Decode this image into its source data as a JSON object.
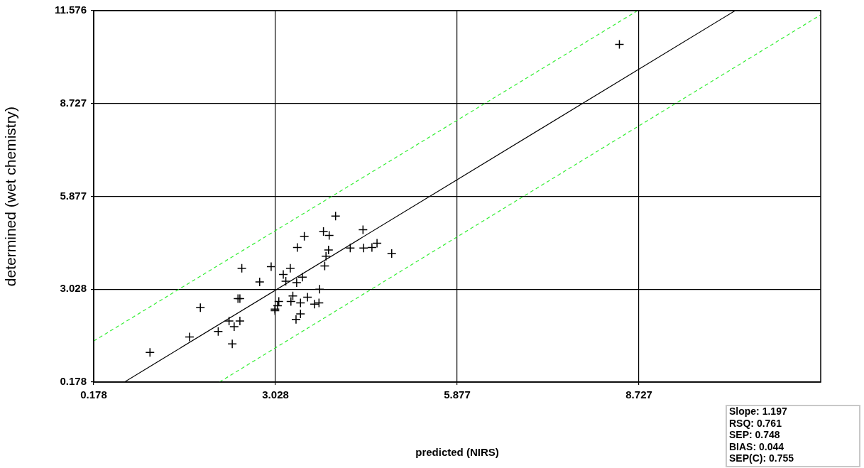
{
  "chart_data": {
    "type": "scatter",
    "xlabel": "predicted (NIRS)",
    "ylabel": "determined (wet chemistry)",
    "xlim": [
      0.178,
      11.576
    ],
    "ylim": [
      0.178,
      11.576
    ],
    "xticks": [
      0.178,
      3.028,
      5.877,
      8.727
    ],
    "yticks": [
      0.178,
      3.028,
      5.877,
      8.727,
      11.576
    ],
    "grid": true,
    "legend": false,
    "marker": "cross",
    "series": [
      {
        "color": "#000000",
        "x": [
          1.06,
          1.68,
          1.85,
          2.13,
          2.3,
          2.35,
          2.38,
          2.47,
          2.44,
          2.47,
          2.5,
          2.78,
          2.96,
          3.02,
          3.02,
          3.06,
          3.08,
          3.15,
          3.19,
          3.26,
          3.27,
          3.3,
          3.35,
          3.36,
          3.37,
          3.42,
          3.42,
          3.45,
          3.48,
          3.53,
          3.64,
          3.71,
          3.72,
          3.78,
          3.8,
          3.82,
          3.86,
          3.87,
          3.97,
          4.2,
          4.4,
          4.41,
          4.54,
          4.62,
          4.85,
          8.42
        ],
        "values": [
          1.09,
          1.56,
          2.46,
          1.73,
          2.05,
          1.35,
          1.88,
          2.05,
          2.74,
          2.74,
          3.67,
          3.25,
          3.72,
          2.42,
          2.37,
          2.52,
          2.65,
          3.48,
          3.27,
          3.67,
          2.65,
          2.82,
          2.1,
          3.23,
          4.31,
          2.61,
          2.27,
          3.4,
          4.65,
          2.78,
          2.57,
          2.61,
          3.03,
          4.8,
          3.74,
          4.04,
          4.23,
          4.68,
          5.27,
          4.29,
          4.85,
          4.29,
          4.31,
          4.44,
          4.12,
          10.54
        ]
      },
      {
        "type": "line",
        "color": "#000000",
        "line_style": "solid",
        "marker": "none",
        "x": [
          0.66,
          10.23
        ],
        "values": [
          0.18,
          11.57
        ]
      },
      {
        "type": "line",
        "color": "#33ee33",
        "line_style": "dashed",
        "marker": "none",
        "x": [
          0.18,
          8.7
        ],
        "values": [
          1.44,
          11.57
        ]
      },
      {
        "type": "line",
        "color": "#33ee33",
        "line_style": "dashed",
        "marker": "none",
        "x": [
          2.15,
          11.57
        ],
        "values": [
          0.18,
          11.44
        ]
      }
    ],
    "annotations": [
      "Slope: 1.197",
      "RSQ: 0.761",
      "SEP: 0.748",
      "BIAS: 0.044",
      "SEP(C): 0.755"
    ]
  }
}
